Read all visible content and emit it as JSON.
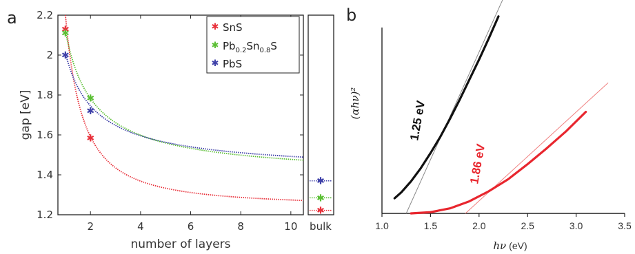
{
  "panel_labels": {
    "a": "a",
    "b": "b"
  },
  "chart_data": [
    {
      "type": "scatter",
      "panel": "a",
      "xlabel": "number of layers",
      "ylabel": "gap [eV]",
      "xlim": [
        0.7,
        10.5
      ],
      "ylim": [
        1.2,
        2.2
      ],
      "xticks": [
        "2",
        "4",
        "6",
        "8",
        "10"
      ],
      "yticks": [
        "1.2",
        "1.4",
        "1.6",
        "1.8",
        "2",
        "2.2"
      ],
      "extra_xtick": "bulk",
      "legend_position": "top-right",
      "series": [
        {
          "name": "SnS",
          "label_main": "SnS",
          "label_sub": "",
          "label_tail": "",
          "color": "#e8303a",
          "points": [
            [
              1,
              2.13
            ],
            [
              2,
              1.585
            ]
          ],
          "bulk": 1.222,
          "fit": {
            "inf": 1.24,
            "a": 0.96,
            "p": 1.45
          }
        },
        {
          "name": "Pb0.2Sn0.8S",
          "label_main": "Pb",
          "label_sub": "0.2",
          "label_mid": "Sn",
          "label_sub2": "0.8",
          "label_tail": "S",
          "color": "#5bbf34",
          "points": [
            [
              1,
              2.11
            ],
            [
              2,
              1.785
            ]
          ],
          "bulk": 1.285,
          "fit": {
            "inf": 1.38,
            "a": 0.74,
            "p": 0.88
          }
        },
        {
          "name": "PbS",
          "label_main": "PbS",
          "label_sub": "",
          "label_tail": "",
          "color": "#3d3fa8",
          "points": [
            [
              1,
              2.0
            ],
            [
              2,
              1.72
            ]
          ],
          "bulk": 1.37,
          "fit": {
            "inf": 1.4,
            "a": 0.61,
            "p": 0.82
          }
        }
      ]
    },
    {
      "type": "line",
      "panel": "b",
      "xlabel_italic": "hν",
      "xlabel_unit": "(eV)",
      "ylabel": "(αhν)²",
      "xlim": [
        1.0,
        3.5
      ],
      "xticks": [
        "1.0",
        "1.5",
        "2.0",
        "2.5",
        "3.0",
        "3.5"
      ],
      "annotations": [
        {
          "text": "1.25 eV",
          "color": "#111111"
        },
        {
          "text": "1.86 eV",
          "color": "#e8262e"
        }
      ],
      "series": [
        {
          "name": "1.25 eV",
          "color": "#111111",
          "x": [
            1.13,
            1.2,
            1.3,
            1.4,
            1.5,
            1.6,
            1.7,
            1.8,
            1.9,
            2.0,
            2.1,
            2.2
          ],
          "y": [
            0.075,
            0.105,
            0.16,
            0.225,
            0.3,
            0.38,
            0.47,
            0.565,
            0.665,
            0.765,
            0.87,
            0.98
          ],
          "tangent": {
            "x0": 1.25,
            "x1": 2.25,
            "y_at_x1": 1.07
          }
        },
        {
          "name": "1.86 eV",
          "color": "#e8262e",
          "x": [
            1.3,
            1.5,
            1.7,
            1.9,
            2.1,
            2.3,
            2.5,
            2.7,
            2.9,
            3.1
          ],
          "y": [
            0.0,
            0.006,
            0.025,
            0.06,
            0.11,
            0.17,
            0.245,
            0.325,
            0.41,
            0.505
          ],
          "tangent": {
            "x0": 1.86,
            "x1": 3.33,
            "y_at_x1": 0.65
          }
        }
      ]
    }
  ]
}
